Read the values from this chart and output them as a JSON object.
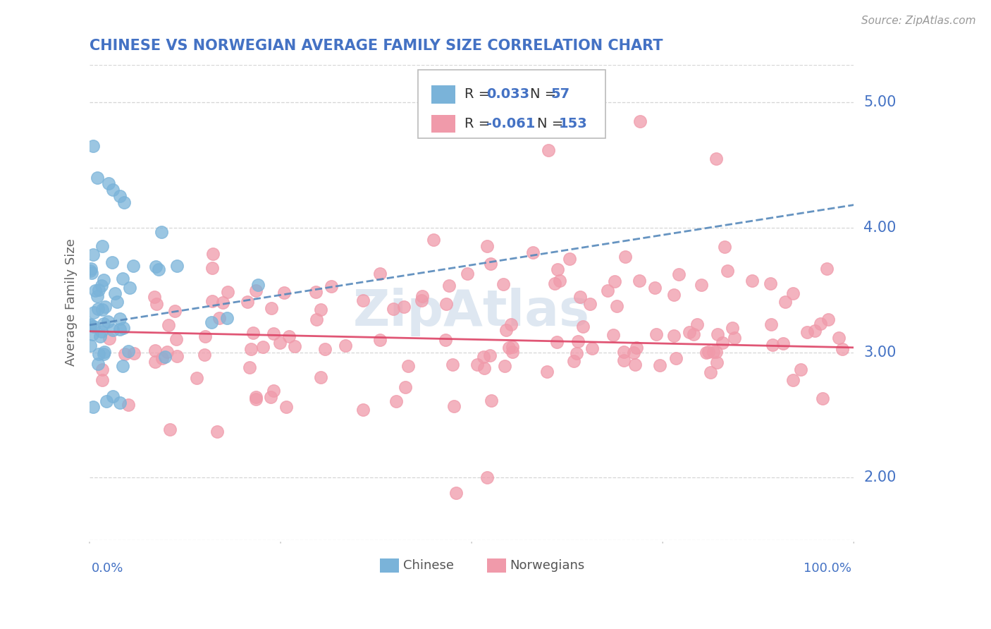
{
  "title": "CHINESE VS NORWEGIAN AVERAGE FAMILY SIZE CORRELATION CHART",
  "source": "Source: ZipAtlas.com",
  "ylabel": "Average Family Size",
  "right_yticks": [
    2.0,
    3.0,
    4.0,
    5.0
  ],
  "xlim": [
    0.0,
    1.0
  ],
  "ylim": [
    1.5,
    5.3
  ],
  "chinese_R": 0.033,
  "chinese_N": 57,
  "norwegian_R": -0.061,
  "norwegian_N": 153,
  "chinese_color": "#7ab3d9",
  "norwegian_color": "#f09aaa",
  "chinese_trend_color": "#5588bb",
  "norwegian_trend_color": "#dd4466",
  "background_color": "#ffffff",
  "grid_color": "#cccccc",
  "title_color": "#4472c4",
  "axis_label_color": "#4472c4",
  "legend_R_color": "#4472c4",
  "watermark_color": "#c8d8e8",
  "legend_text_dark": "#333333"
}
